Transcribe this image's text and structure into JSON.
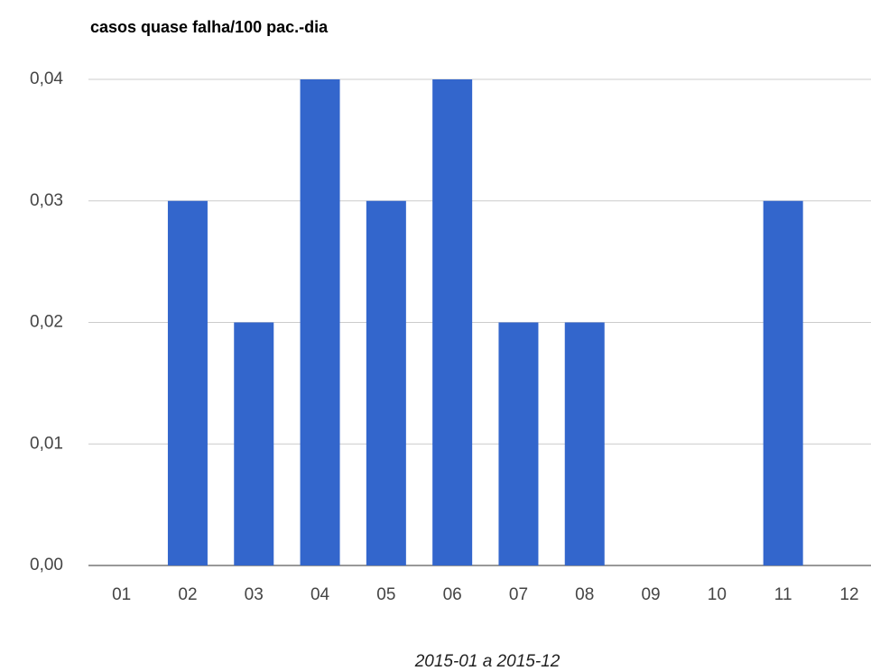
{
  "chart_data": {
    "type": "bar",
    "title": "casos quase falha/100 pac.-dia",
    "x_label": "2015-01 a 2015-12",
    "categories": [
      "01",
      "02",
      "03",
      "04",
      "05",
      "06",
      "07",
      "08",
      "09",
      "10",
      "11",
      "12"
    ],
    "values": [
      0,
      0.03,
      0.02,
      0.04,
      0.03,
      0.04,
      0.02,
      0.02,
      0,
      0,
      0.03,
      0
    ],
    "color": "#3366cc",
    "ylim": [
      0,
      0.04
    ],
    "yticks": [
      {
        "value": 0,
        "label": "0,00"
      },
      {
        "value": 0.01,
        "label": "0,01"
      },
      {
        "value": 0.02,
        "label": "0,02"
      },
      {
        "value": 0.03,
        "label": "0,03"
      },
      {
        "value": 0.04,
        "label": "0,04"
      }
    ],
    "grid": true
  }
}
